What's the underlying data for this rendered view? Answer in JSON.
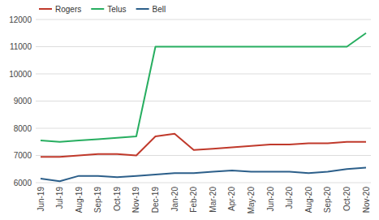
{
  "chart_data": {
    "type": "line",
    "categories": [
      "Jun-19",
      "Jul-19",
      "Aug-19",
      "Sep-19",
      "Oct-19",
      "Nov-19",
      "Dec-19",
      "Jan-20",
      "Feb-20",
      "Mar-20",
      "Apr-20",
      "May-20",
      "Jun-20",
      "Jul-20",
      "Aug-20",
      "Sep-20",
      "Oct-20",
      "Nov-20"
    ],
    "series": [
      {
        "name": "Rogers",
        "color": "#c0392b",
        "values": [
          6950,
          6950,
          7000,
          7050,
          7050,
          7000,
          7700,
          7800,
          7200,
          7250,
          7300,
          7350,
          7400,
          7400,
          7450,
          7450,
          7500,
          7500
        ]
      },
      {
        "name": "Telus",
        "color": "#27ae60",
        "values": [
          7550,
          7500,
          7550,
          7600,
          7650,
          7700,
          11000,
          11000,
          11000,
          11000,
          11000,
          11000,
          11000,
          11000,
          11000,
          11000,
          11000,
          11500
        ]
      },
      {
        "name": "Bell",
        "color": "#2c5f8a",
        "values": [
          6150,
          6050,
          6250,
          6250,
          6200,
          6250,
          6300,
          6350,
          6350,
          6400,
          6450,
          6400,
          6400,
          6400,
          6350,
          6400,
          6500,
          6550
        ]
      }
    ],
    "ylim": [
      6000,
      12000
    ],
    "yticks": [
      6000,
      7000,
      8000,
      9000,
      10000,
      11000,
      12000
    ],
    "grid": true,
    "legend": "upper left"
  }
}
